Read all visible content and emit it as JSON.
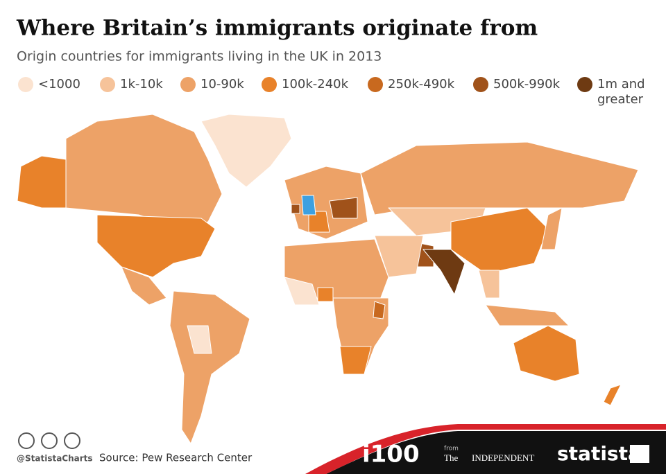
{
  "header": {
    "title": "Where Britain’s immigrants originate from",
    "subtitle": "Origin countries for immigrants living in the UK in 2013"
  },
  "legend": {
    "items": [
      {
        "label": "<1000",
        "color": "#fbe3d0"
      },
      {
        "label": "1k-10k",
        "color": "#f6c39a"
      },
      {
        "label": "10-90k",
        "color": "#eda267"
      },
      {
        "label": "100k-240k",
        "color": "#e8822a"
      },
      {
        "label": "250k-490k",
        "color": "#c8691f"
      },
      {
        "label": "500k-990k",
        "color": "#a0521a"
      },
      {
        "label": [
          "1m and",
          "greater"
        ],
        "color": "#6e3a12"
      }
    ],
    "uk_color": "#3ea0e0"
  },
  "footer": {
    "handle": "@StatistaCharts",
    "source": "Source: Pew Research Center",
    "brand1": "i100",
    "from": "from",
    "brand2_the": "The",
    "brand2": "INDEPENDENT",
    "brand3": "statista"
  }
}
